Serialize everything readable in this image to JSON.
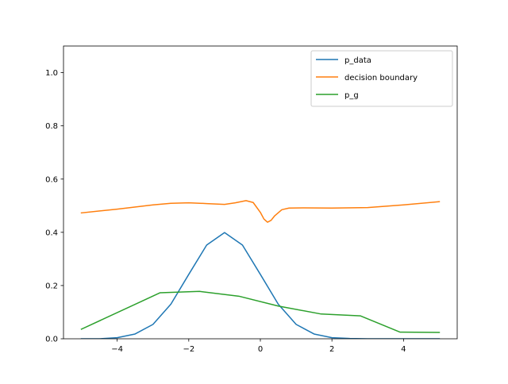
{
  "chart_data": {
    "type": "line",
    "title": "",
    "xlabel": "",
    "ylabel": "",
    "xlim": [
      -5.5,
      5.5
    ],
    "ylim": [
      0,
      1.1
    ],
    "grid": false,
    "legend_position": "top-right",
    "x_ticks": [
      -4,
      -2,
      0,
      2,
      4
    ],
    "x_tick_labels": [
      "−4",
      "−2",
      "0",
      "2",
      "4"
    ],
    "y_ticks": [
      0.0,
      0.2,
      0.4,
      0.6,
      0.8,
      1.0
    ],
    "y_tick_labels": [
      "0.0",
      "0.2",
      "0.4",
      "0.6",
      "0.8",
      "1.0"
    ],
    "series": [
      {
        "name": "p_data",
        "color": "#1f77b4",
        "x": [
          -5.0,
          -4.5,
          -4.0,
          -3.5,
          -3.0,
          -2.5,
          -2.0,
          -1.5,
          -1.0,
          -0.5,
          0.0,
          0.5,
          1.0,
          1.5,
          2.0,
          2.5,
          3.0,
          3.5,
          4.0,
          4.5,
          5.0
        ],
        "y": [
          0.0,
          0.0,
          0.004,
          0.018,
          0.054,
          0.13,
          0.242,
          0.352,
          0.399,
          0.352,
          0.242,
          0.13,
          0.054,
          0.018,
          0.004,
          0.001,
          0.0,
          0.0,
          0.0,
          0.0,
          0.0
        ]
      },
      {
        "name": "decision boundary",
        "color": "#ff7f0e",
        "x": [
          -5.0,
          -4.0,
          -3.0,
          -2.5,
          -2.0,
          -1.5,
          -1.0,
          -0.7,
          -0.4,
          -0.2,
          0.0,
          0.1,
          0.2,
          0.3,
          0.4,
          0.6,
          0.8,
          1.2,
          2.0,
          3.0,
          4.0,
          5.0
        ],
        "y": [
          0.473,
          0.487,
          0.503,
          0.509,
          0.511,
          0.508,
          0.505,
          0.511,
          0.519,
          0.512,
          0.475,
          0.45,
          0.438,
          0.445,
          0.462,
          0.485,
          0.491,
          0.492,
          0.491,
          0.493,
          0.503,
          0.515
        ]
      },
      {
        "name": "p_g",
        "color": "#2ca02c",
        "x": [
          -5.0,
          -2.8,
          -1.7,
          -0.6,
          0.5,
          1.7,
          2.8,
          3.9,
          5.0
        ],
        "y": [
          0.036,
          0.173,
          0.178,
          0.16,
          0.123,
          0.093,
          0.086,
          0.025,
          0.024
        ]
      }
    ]
  }
}
